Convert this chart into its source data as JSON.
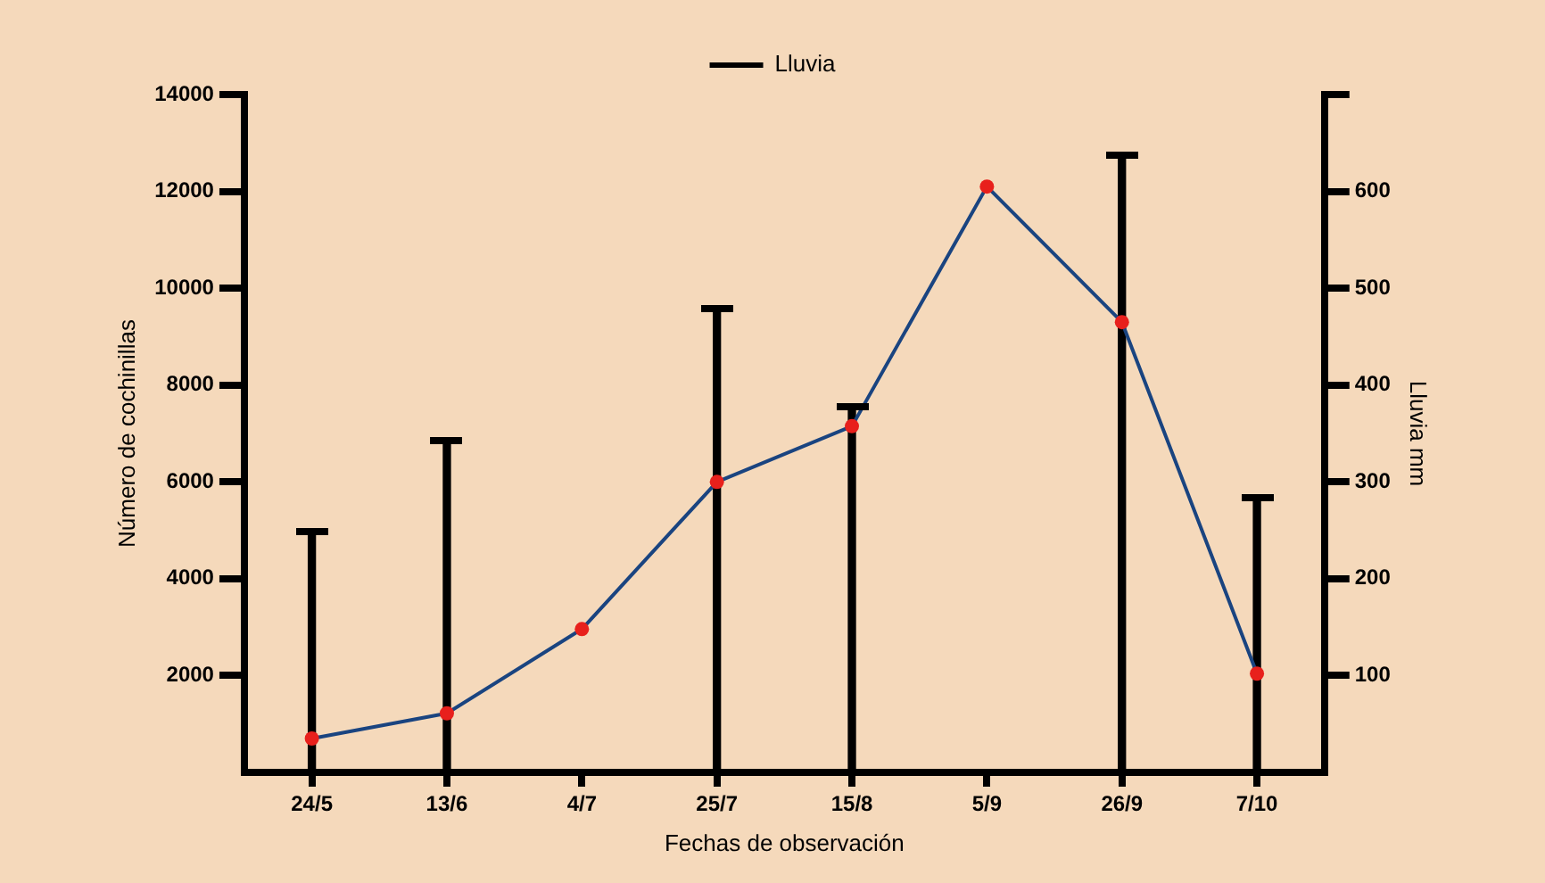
{
  "chart_data": {
    "type": "line",
    "xlabel": "Fechas de observación",
    "ylabel": "Número de cochinillas",
    "y2label": "Lluvia mm",
    "categories": [
      "24/5",
      "13/6",
      "4/7",
      "25/7",
      "15/8",
      "5/9",
      "26/9",
      "7/10"
    ],
    "series": [
      {
        "color": "#1a4480",
        "colors": [
          "#e8201c",
          "#e8201c",
          "#e8201c",
          "#e8201c",
          "#e8201c",
          "#e8201c",
          "#e8201c",
          "#e8201c"
        ],
        "values": [
          700,
          1220,
          2960,
          6000,
          7150,
          12100,
          9300,
          2040
        ]
      },
      {
        "type": "bar",
        "name": "Lluvia",
        "color": "#000000",
        "axis": "y2",
        "values": [
          250,
          345,
          null,
          480,
          380,
          null,
          640,
          285
        ]
      }
    ],
    "ylim": [
      0,
      14000
    ],
    "yticks": [
      2000,
      4000,
      6000,
      8000,
      10000,
      12000,
      14000
    ],
    "y2lim": [
      0,
      700
    ],
    "y2ticks": [
      100,
      200,
      300,
      400,
      500,
      600,
      {
        "value": 700,
        "label": null
      }
    ],
    "marker": "circle",
    "grid": false,
    "legend": "top"
  }
}
